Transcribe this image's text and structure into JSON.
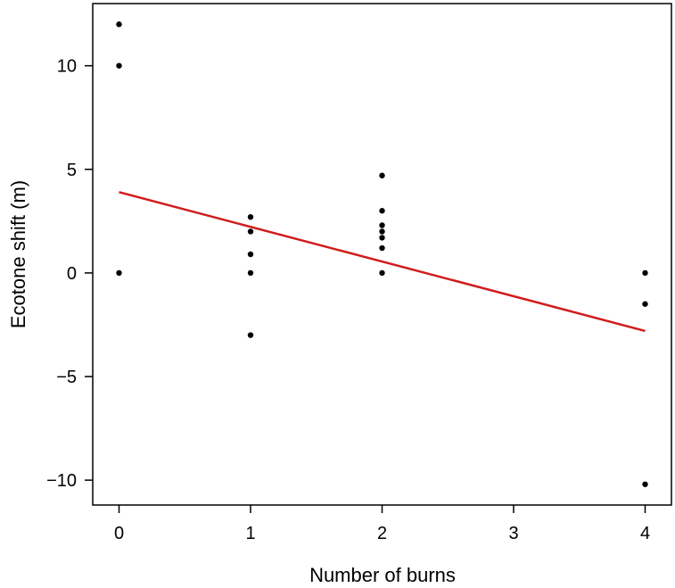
{
  "chart_data": {
    "type": "scatter",
    "title": "",
    "xlabel": "Number of burns",
    "ylabel": "Ecotone shift (m)",
    "xlim": [
      -0.2,
      4.2
    ],
    "ylim": [
      -11.2,
      13.0
    ],
    "xticks": [
      0,
      1,
      2,
      3,
      4
    ],
    "yticks": [
      -10,
      -5,
      0,
      5,
      10
    ],
    "xtick_labels": [
      "0",
      "1",
      "2",
      "3",
      "4"
    ],
    "ytick_labels": [
      "−10",
      "−5",
      "0",
      "5",
      "10"
    ],
    "grid": false,
    "points": [
      {
        "x": 0,
        "y": 12
      },
      {
        "x": 0,
        "y": 10
      },
      {
        "x": 0,
        "y": 0
      },
      {
        "x": 1,
        "y": 2.7
      },
      {
        "x": 1,
        "y": 2.0
      },
      {
        "x": 1,
        "y": 0.9
      },
      {
        "x": 1,
        "y": 0
      },
      {
        "x": 1,
        "y": -3.0
      },
      {
        "x": 2,
        "y": 4.7
      },
      {
        "x": 2,
        "y": 3.0
      },
      {
        "x": 2,
        "y": 2.3
      },
      {
        "x": 2,
        "y": 2.0
      },
      {
        "x": 2,
        "y": 1.7
      },
      {
        "x": 2,
        "y": 1.2
      },
      {
        "x": 2,
        "y": 0
      },
      {
        "x": 4,
        "y": 0
      },
      {
        "x": 4,
        "y": -1.5
      },
      {
        "x": 4,
        "y": -10.2
      }
    ],
    "trend_line": {
      "x": [
        0,
        4
      ],
      "y": [
        3.9,
        -2.8
      ]
    },
    "colors": {
      "points": "#000000",
      "trend_line": "#d01c1c",
      "frame": "#000000"
    }
  }
}
